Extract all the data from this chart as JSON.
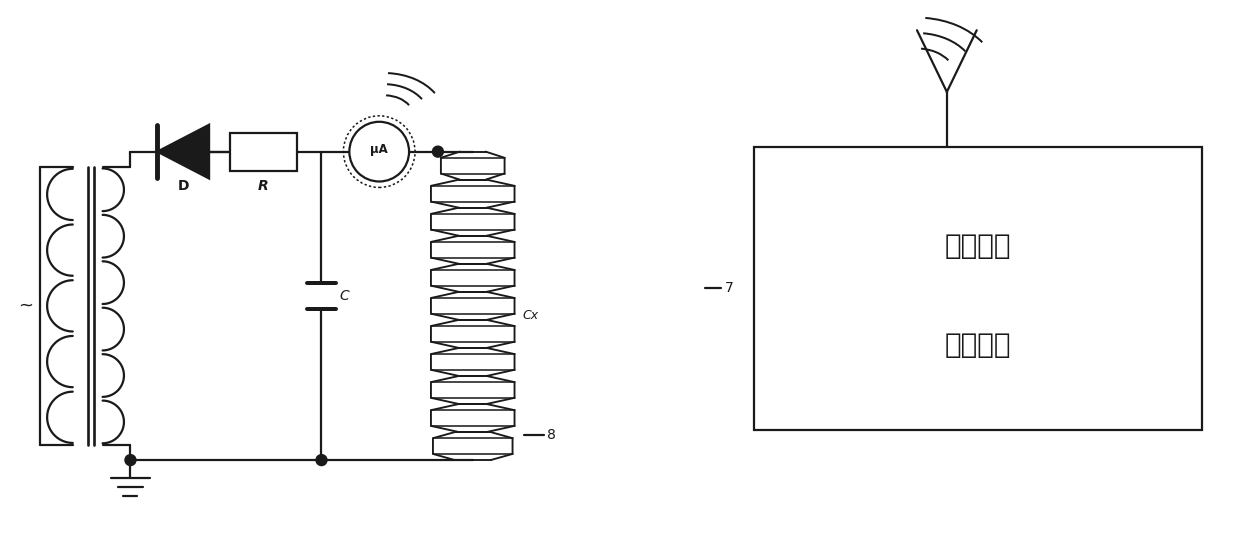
{
  "bg_color": "#ffffff",
  "line_color": "#1a1a1a",
  "line_width": 1.6,
  "label_8": "8",
  "label_7": "7",
  "label_cx": "Cx",
  "label_c": "C",
  "label_r": "R",
  "label_d": "D",
  "label_monitor_line1": "监视设备",
  "label_monitor_line2": "液晶显示",
  "font_size_label": 10,
  "font_size_monitor": 20
}
